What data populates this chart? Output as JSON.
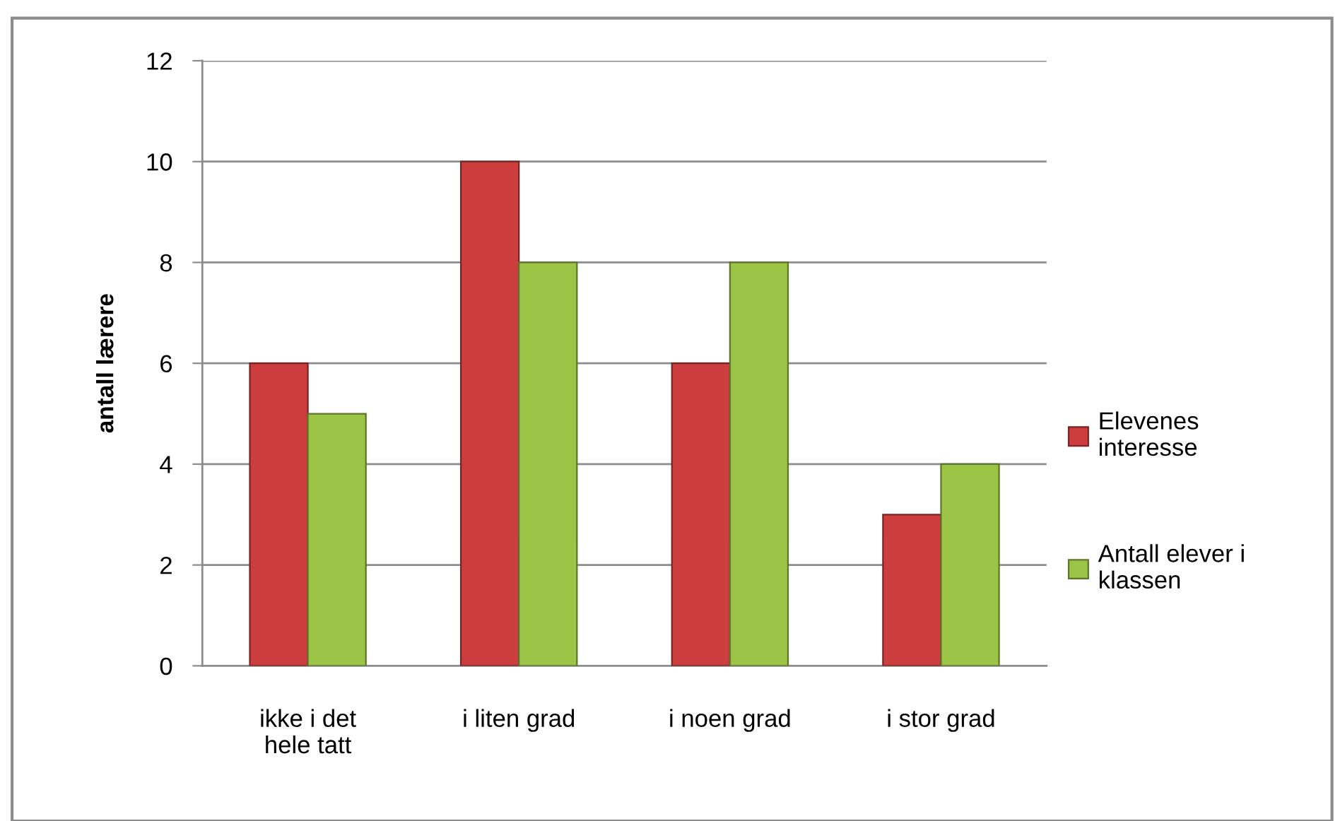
{
  "chart_data": {
    "type": "bar",
    "ylabel": "antall lærere",
    "categories": [
      "ikke i det\nhele tatt",
      "i liten grad",
      "i noen grad",
      "i stor grad"
    ],
    "series": [
      {
        "name": "Elevenes\ninteresse",
        "color": "#cc3d3d",
        "values": [
          6,
          10,
          6,
          3
        ]
      },
      {
        "name": "Antall elever i\nklassen",
        "color": "#9cc447",
        "values": [
          5,
          8,
          8,
          4
        ]
      }
    ],
    "ylim": [
      0,
      12
    ],
    "yticks": [
      0,
      2,
      4,
      6,
      8,
      10,
      12
    ],
    "grid": "y",
    "legend": "right"
  }
}
